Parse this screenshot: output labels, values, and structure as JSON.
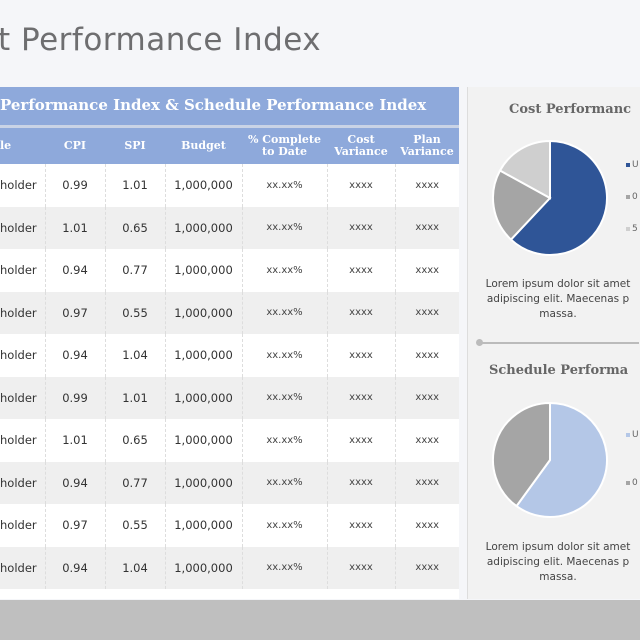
{
  "title": "t Performance Index",
  "table": {
    "caption": "Performance Index & Schedule Performance Index",
    "headers": [
      "le",
      "CPI",
      "SPI",
      "Budget",
      "% Complete to Date",
      "Cost Variance",
      "Plan Variance"
    ],
    "rows": [
      [
        "holder",
        "0.99",
        "1.01",
        "1,000,000",
        "xx.xx%",
        "xxxx",
        "xxxx"
      ],
      [
        "holder",
        "1.01",
        "0.65",
        "1,000,000",
        "xx.xx%",
        "xxxx",
        "xxxx"
      ],
      [
        "holder",
        "0.94",
        "0.77",
        "1,000,000",
        "xx.xx%",
        "xxxx",
        "xxxx"
      ],
      [
        "holder",
        "0.97",
        "0.55",
        "1,000,000",
        "xx.xx%",
        "xxxx",
        "xxxx"
      ],
      [
        "holder",
        "0.94",
        "1.04",
        "1,000,000",
        "xx.xx%",
        "xxxx",
        "xxxx"
      ],
      [
        "holder",
        "0.99",
        "1.01",
        "1,000,000",
        "xx.xx%",
        "xxxx",
        "xxxx"
      ],
      [
        "holder",
        "1.01",
        "0.65",
        "1,000,000",
        "xx.xx%",
        "xxxx",
        "xxxx"
      ],
      [
        "holder",
        "0.94",
        "0.77",
        "1,000,000",
        "xx.xx%",
        "xxxx",
        "xxxx"
      ],
      [
        "holder",
        "0.97",
        "0.55",
        "1,000,000",
        "xx.xx%",
        "xxxx",
        "xxxx"
      ],
      [
        "holder",
        "0.94",
        "1.04",
        "1,000,000",
        "xx.xx%",
        "xxxx",
        "xxxx"
      ]
    ]
  },
  "panels": [
    {
      "title": "Cost Performanc",
      "desc": "Lorem ipsum dolor sit amet adipiscing elit. Maecenas p massa."
    },
    {
      "title": "Schedule Performa",
      "desc": "Lorem ipsum dolor sit amet adipiscing elit. Maecenas p massa."
    }
  ],
  "chart_data": [
    {
      "type": "pie",
      "title": "Cost Performanc",
      "slices": [
        {
          "label": "U",
          "value": 62,
          "color": "#2f5597"
        },
        {
          "label": "0",
          "value": 21,
          "color": "#a5a5a5"
        },
        {
          "label": "5",
          "value": 17,
          "color": "#cfcfcf"
        }
      ]
    },
    {
      "type": "pie",
      "title": "Schedule Performa",
      "slices": [
        {
          "label": "U",
          "value": 60,
          "color": "#b4c7e7"
        },
        {
          "label": "0",
          "value": 40,
          "color": "#a5a5a5"
        }
      ]
    }
  ]
}
